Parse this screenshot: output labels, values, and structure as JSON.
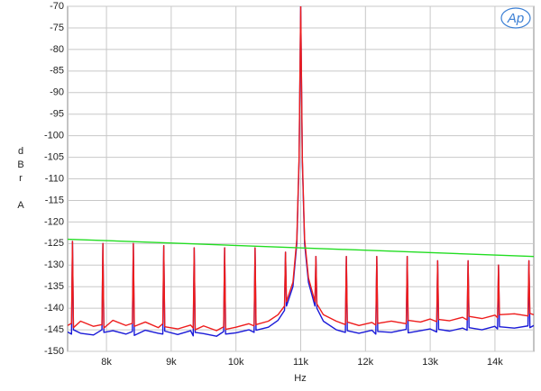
{
  "chart_data": {
    "type": "line",
    "y_label": "dBr A",
    "x_label": "Hz",
    "logo": "Ap",
    "xlim": [
      7400,
      14600
    ],
    "ylim": [
      -150,
      -70
    ],
    "grid": true,
    "xticks": [
      {
        "value": 8000,
        "label": "8k"
      },
      {
        "value": 9000,
        "label": "9k"
      },
      {
        "value": 10000,
        "label": "10k"
      },
      {
        "value": 11000,
        "label": "11k"
      },
      {
        "value": 12000,
        "label": "12k"
      },
      {
        "value": 13000,
        "label": "13k"
      },
      {
        "value": 14000,
        "label": "14k"
      }
    ],
    "yticks": [
      -70,
      -75,
      -80,
      -85,
      -90,
      -95,
      -100,
      -105,
      -110,
      -115,
      -120,
      -125,
      -130,
      -135,
      -140,
      -145,
      -150
    ],
    "x": [
      7400,
      7460,
      7475,
      7490,
      7600,
      7800,
      7930,
      7945,
      7960,
      8100,
      8300,
      8400,
      8415,
      8430,
      8600,
      8800,
      8870,
      8885,
      8900,
      9100,
      9300,
      9340,
      9355,
      9370,
      9500,
      9700,
      9810,
      9825,
      9840,
      10000,
      10200,
      10280,
      10295,
      10310,
      10500,
      10650,
      10750,
      10765,
      10780,
      10880,
      10940,
      10975,
      11000,
      11025,
      11060,
      11120,
      11220,
      11235,
      11250,
      11350,
      11550,
      11690,
      11705,
      11720,
      11900,
      12100,
      12160,
      12175,
      12190,
      12400,
      12630,
      12645,
      12660,
      12850,
      13000,
      13100,
      13115,
      13130,
      13300,
      13500,
      13570,
      13585,
      13600,
      13800,
      14000,
      14040,
      14055,
      14070,
      14300,
      14510,
      14525,
      14540,
      14600
    ],
    "series": [
      {
        "color": "#1a1ad8",
        "values": [
          -145.5,
          -146,
          -124.5,
          -145,
          -145.8,
          -146.2,
          -145,
          -125,
          -145.6,
          -145.2,
          -146,
          -145.4,
          -125,
          -146.3,
          -145.1,
          -145.8,
          -146,
          -125.5,
          -145.3,
          -146.1,
          -145.2,
          -146.4,
          -126,
          -145.6,
          -145.9,
          -146.5,
          -145.4,
          -126,
          -146,
          -145.7,
          -145,
          -145.6,
          -126,
          -145.1,
          -144.4,
          -142.8,
          -140.5,
          -127,
          -139.5,
          -135,
          -125,
          -106,
          -70,
          -106,
          -125,
          -134,
          -139.5,
          -128,
          -140,
          -143,
          -145,
          -145.6,
          -128,
          -145.2,
          -145.8,
          -145.1,
          -146,
          -128,
          -145.4,
          -145.6,
          -144.9,
          -128,
          -145.7,
          -145.2,
          -144.8,
          -145.5,
          -129,
          -144.9,
          -145.3,
          -144.6,
          -145.1,
          -129,
          -144.5,
          -145,
          -144.2,
          -144.8,
          -130,
          -144.3,
          -144.6,
          -144.1,
          -129,
          -144.5,
          -144
        ]
      },
      {
        "color": "#ee1c1c",
        "values": [
          -144,
          -143.5,
          -124.5,
          -144.5,
          -143,
          -144.2,
          -143.8,
          -125,
          -144.6,
          -142.8,
          -144,
          -143.5,
          -125,
          -144.2,
          -143.2,
          -144.5,
          -143.6,
          -125.5,
          -144.3,
          -144.8,
          -143.9,
          -144.6,
          -126,
          -145,
          -144.1,
          -145.2,
          -144.3,
          -126,
          -144.9,
          -144.4,
          -143.6,
          -144.1,
          -126,
          -143.8,
          -143,
          -141.5,
          -139.5,
          -127,
          -138.5,
          -134,
          -124,
          -105,
          -70,
          -105,
          -124,
          -133,
          -138.5,
          -128,
          -139,
          -141.5,
          -143,
          -143.8,
          -128,
          -143.2,
          -144,
          -143.3,
          -143.9,
          -128,
          -143.5,
          -143,
          -143.6,
          -128,
          -142.8,
          -143.2,
          -142.5,
          -143.1,
          -129,
          -142.6,
          -142.9,
          -142.1,
          -142.7,
          -129,
          -141.9,
          -142.4,
          -141.6,
          -142.2,
          -130,
          -141.5,
          -141.3,
          -141.8,
          -129,
          -141.2,
          -141.5
        ]
      },
      {
        "color": "#22dd22",
        "x": [
          7400,
          14600
        ],
        "values": [
          -124,
          -128
        ]
      }
    ]
  }
}
